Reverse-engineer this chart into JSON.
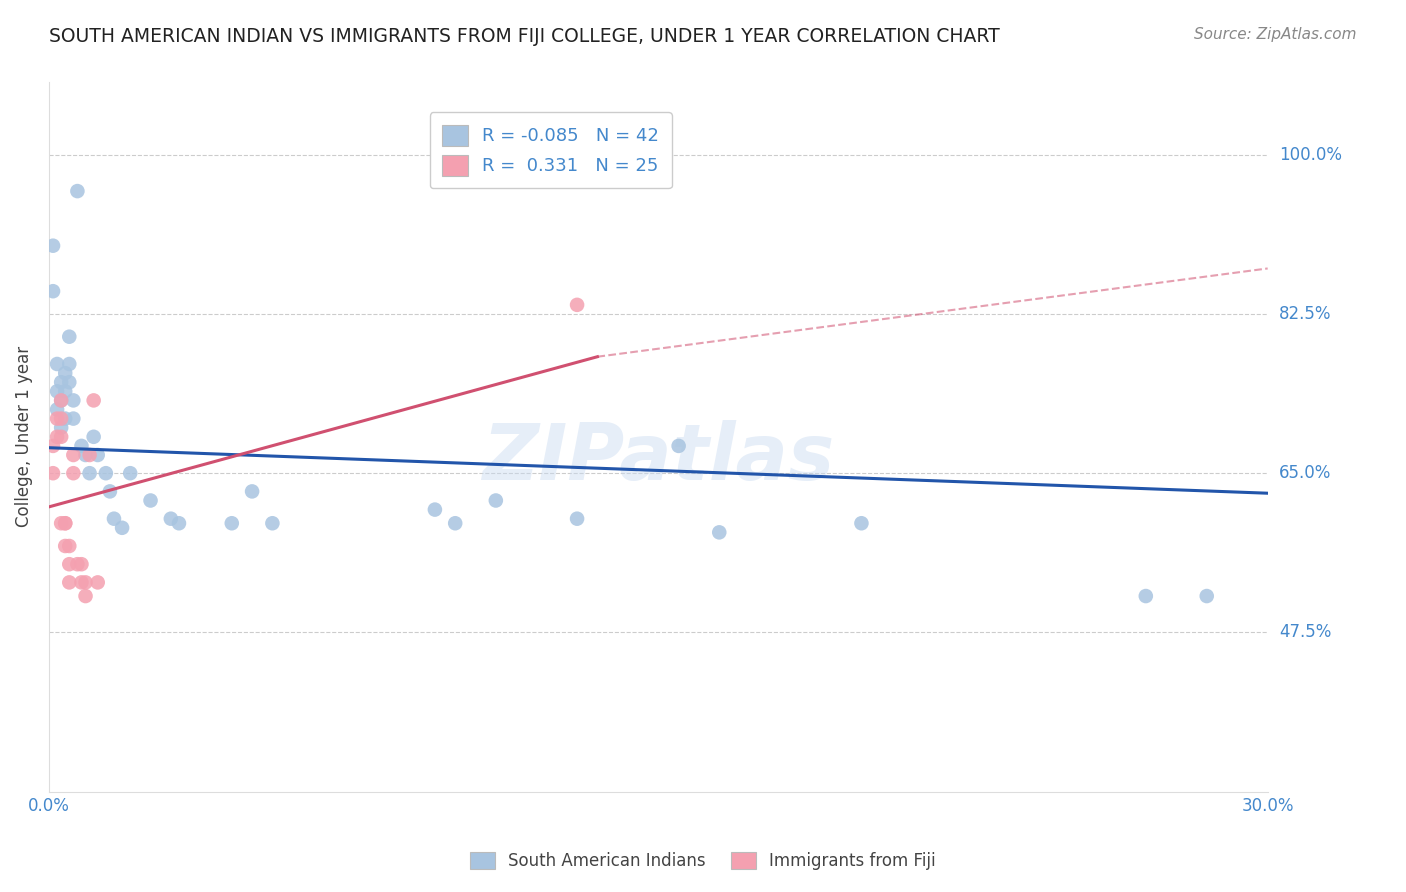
{
  "title": "SOUTH AMERICAN INDIAN VS IMMIGRANTS FROM FIJI COLLEGE, UNDER 1 YEAR CORRELATION CHART",
  "source": "Source: ZipAtlas.com",
  "ylabel": "College, Under 1 year",
  "xlim": [
    0.0,
    0.3
  ],
  "ylim": [
    0.3,
    1.08
  ],
  "xtick_labels": [
    "0.0%",
    "30.0%"
  ],
  "ytick_positions": [
    0.475,
    0.65,
    0.825,
    1.0
  ],
  "ytick_labels": [
    "47.5%",
    "65.0%",
    "82.5%",
    "100.0%"
  ],
  "background_color": "#ffffff",
  "watermark": "ZIPatlas",
  "blue_color": "#a8c4e0",
  "pink_color": "#f4a0b0",
  "blue_line_color": "#2255aa",
  "pink_line_color": "#d05070",
  "blue_x": [
    0.001,
    0.001,
    0.002,
    0.002,
    0.002,
    0.003,
    0.003,
    0.003,
    0.004,
    0.004,
    0.004,
    0.005,
    0.005,
    0.005,
    0.006,
    0.006,
    0.007,
    0.008,
    0.009,
    0.01,
    0.011,
    0.012,
    0.014,
    0.015,
    0.016,
    0.018,
    0.02,
    0.025,
    0.03,
    0.032,
    0.045,
    0.05,
    0.055,
    0.095,
    0.1,
    0.11,
    0.13,
    0.155,
    0.165,
    0.2,
    0.27,
    0.285
  ],
  "blue_y": [
    0.9,
    0.85,
    0.77,
    0.74,
    0.72,
    0.75,
    0.73,
    0.7,
    0.76,
    0.74,
    0.71,
    0.8,
    0.77,
    0.75,
    0.73,
    0.71,
    0.96,
    0.68,
    0.67,
    0.65,
    0.69,
    0.67,
    0.65,
    0.63,
    0.6,
    0.59,
    0.65,
    0.62,
    0.6,
    0.595,
    0.595,
    0.63,
    0.595,
    0.61,
    0.595,
    0.62,
    0.6,
    0.68,
    0.585,
    0.595,
    0.515,
    0.515
  ],
  "pink_x": [
    0.001,
    0.001,
    0.002,
    0.002,
    0.003,
    0.003,
    0.003,
    0.003,
    0.004,
    0.004,
    0.004,
    0.005,
    0.005,
    0.005,
    0.006,
    0.006,
    0.007,
    0.008,
    0.008,
    0.009,
    0.009,
    0.01,
    0.011,
    0.012,
    0.13
  ],
  "pink_y": [
    0.68,
    0.65,
    0.71,
    0.69,
    0.73,
    0.71,
    0.69,
    0.595,
    0.595,
    0.595,
    0.57,
    0.57,
    0.55,
    0.53,
    0.67,
    0.65,
    0.55,
    0.55,
    0.53,
    0.53,
    0.515,
    0.67,
    0.73,
    0.53,
    0.835
  ],
  "blue_line_x0": 0.0,
  "blue_line_y0": 0.678,
  "blue_line_x1": 0.3,
  "blue_line_y1": 0.628,
  "pink_line_solid_x0": 0.0,
  "pink_line_solid_y0": 0.613,
  "pink_line_solid_x1": 0.135,
  "pink_line_solid_y1": 0.778,
  "pink_line_dash_x0": 0.135,
  "pink_line_dash_y0": 0.778,
  "pink_line_dash_x1": 0.3,
  "pink_line_dash_y1": 0.875
}
